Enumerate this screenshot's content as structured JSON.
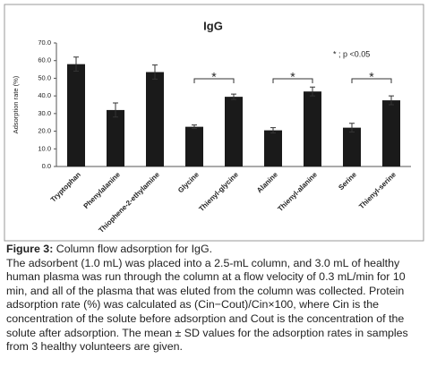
{
  "chart_data": {
    "type": "bar",
    "title": "IgG",
    "y_label": "Adsorption rate (%)",
    "categories": [
      "Tryptophan",
      "Phenylalanine",
      "Thiophene-2-ethylamine",
      "Glycine",
      "Thienyl-glycine",
      "Alanine",
      "Thienyl-alanine",
      "Serine",
      "Thienyl-serine"
    ],
    "values": [
      58,
      32,
      53.5,
      22.5,
      39.5,
      20.5,
      42.5,
      22,
      37.5
    ],
    "errors": [
      4,
      4,
      4,
      1,
      1.5,
      1.5,
      2.5,
      2.5,
      2.5
    ],
    "color": "#1a1a1a",
    "ylim": [
      0,
      70
    ],
    "yticks": [
      {
        "value": 0,
        "label": "0.0"
      },
      {
        "value": 10,
        "label": "10.0"
      },
      {
        "value": 20,
        "label": "20.0"
      },
      {
        "value": 30,
        "label": "30.0"
      },
      {
        "value": 40,
        "label": "40.0"
      },
      {
        "value": 50,
        "label": "50.0"
      },
      {
        "value": 60,
        "label": "60.0"
      },
      {
        "value": 70,
        "label": "70.0"
      }
    ],
    "grid": false,
    "significance": [
      {
        "label": "*",
        "pair": [
          "Glycine",
          "Thienyl-glycine"
        ]
      },
      {
        "label": "*",
        "pair": [
          "Alanine",
          "Thienyl-alanine"
        ]
      },
      {
        "label": "*",
        "pair": [
          "Serine",
          "Thienyl-serine"
        ]
      }
    ],
    "note": "* ; p <0.05"
  },
  "caption": {
    "label": "Figure 3:",
    "title": "Column flow adsorption for IgG.",
    "text": "The adsorbent (1.0 mL) was placed into a 2.5-mL column, and 3.0 mL of healthy human plasma was run through the column at a flow velocity of 0.3 mL/min for 10 min, and all of the plasma that was eluted from the column was collected. Protein adsorption rate (%) was calculated as (Cin−Cout)/Cin×100, where Cin is the concentration of the solute before adsorption and Cout is the concentration of the solute after adsorption. The mean ± SD values for the adsorption rates in samples from 3 healthy volunteers are given."
  }
}
